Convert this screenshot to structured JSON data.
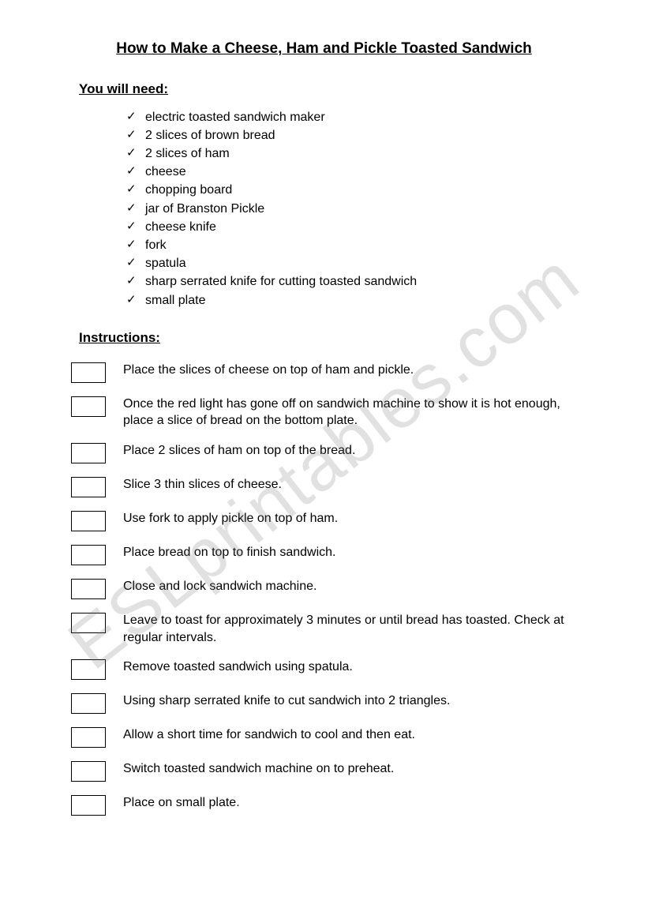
{
  "title": "How to Make a Cheese, Ham and Pickle Toasted Sandwich",
  "needHeading": "You will need:",
  "needs": [
    "electric toasted sandwich maker",
    "2 slices of brown bread",
    "2 slices of ham",
    "cheese",
    "chopping board",
    "jar of Branston Pickle",
    "cheese knife",
    "fork",
    "spatula",
    "sharp serrated knife for cutting toasted sandwich",
    "small plate"
  ],
  "instructionsHeading": "Instructions:",
  "instructions": [
    "Place the slices of cheese on top of ham and pickle.",
    "Once the red light has gone off on sandwich machine to show it is hot enough, place a slice of bread on the bottom plate.",
    "Place 2 slices of ham on top of the bread.",
    "Slice 3 thin slices of cheese.",
    "Use fork to apply pickle on top of ham.",
    "Place bread on top to finish sandwich.",
    "Close and lock sandwich machine.",
    "Leave to toast for approximately 3 minutes or until bread has toasted. Check at regular intervals.",
    "Remove toasted sandwich using spatula.",
    "Using sharp serrated knife to cut sandwich into 2 triangles.",
    "Allow a short time for sandwich to cool and then eat.",
    "Switch toasted sandwich machine on to preheat.",
    "Place on small plate."
  ],
  "watermark": "ESLprintables.com",
  "colors": {
    "text": "#000000",
    "background": "#ffffff",
    "watermark": "rgba(120,120,120,0.22)"
  }
}
